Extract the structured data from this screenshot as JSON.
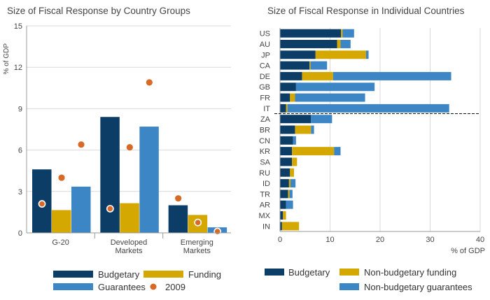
{
  "colors": {
    "budgetary": "#0b3d67",
    "funding": "#d4a800",
    "guarantees": "#3d86c6",
    "y2009": "#d86a28",
    "grid": "#d9d9d9",
    "axis": "#999999"
  },
  "chart_data": [
    {
      "type": "bar",
      "title": "Size of Fiscal Response by Country Groups",
      "ylabel": "% of GDP",
      "ylim": [
        0,
        15
      ],
      "yticks": [
        "0",
        "3",
        "6",
        "9",
        "12",
        "15"
      ],
      "categories": [
        {
          "lines": [
            "G-20"
          ]
        },
        {
          "lines": [
            "Developed",
            "Markets"
          ]
        },
        {
          "lines": [
            "Emerging",
            "Markets"
          ]
        }
      ],
      "series": [
        {
          "name": "Budgetary",
          "values": [
            4.6,
            8.4,
            2.0
          ]
        },
        {
          "name": "Funding",
          "values": [
            1.65,
            2.15,
            1.3
          ]
        },
        {
          "name": "Guarantees",
          "values": [
            3.35,
            7.7,
            0.4
          ]
        }
      ],
      "points_2009": [
        {
          "name": "2009",
          "values": [
            [
              2.1,
              4.0,
              6.4
            ],
            [
              1.75,
              6.2,
              10.9
            ],
            [
              2.5,
              0.75,
              0.1
            ]
          ]
        }
      ],
      "legend": [
        "Budgetary",
        "Funding",
        "Guarantees",
        "2009"
      ],
      "legend_position": "bottom",
      "grid": true
    },
    {
      "type": "stacked-bar-horizontal",
      "title": "Size of Fiscal Response in Individual Countries",
      "xlabel": "% of GDP",
      "xlim": [
        0,
        40
      ],
      "xticks": [
        "0",
        "10",
        "20",
        "30",
        "40"
      ],
      "categories": [
        "US",
        "AU",
        "JP",
        "CA",
        "DE",
        "GB",
        "FR",
        "IT",
        "ZA",
        "BR",
        "CN",
        "KR",
        "SA",
        "RU",
        "ID",
        "TR",
        "AR",
        "MX",
        "IN"
      ],
      "series": [
        {
          "name": "Budgetary",
          "values": [
            12.2,
            11.4,
            7.1,
            5.9,
            4.4,
            3.2,
            2.0,
            1.2,
            6.2,
            3.0,
            2.6,
            2.4,
            2.4,
            2.0,
            1.8,
            1.6,
            1.2,
            0.6,
            0.4
          ]
        },
        {
          "name": "Non-budgetary funding",
          "values": [
            0.3,
            0.7,
            10.1,
            0.2,
            6.2,
            0.0,
            1.0,
            0.3,
            0.0,
            3.2,
            0.0,
            8.4,
            1.0,
            0.8,
            0.3,
            0.3,
            0.0,
            0.6,
            3.4
          ]
        },
        {
          "name": "Non-budgetary guarantees",
          "values": [
            2.3,
            2.0,
            0.5,
            3.3,
            23.6,
            15.7,
            14.0,
            32.3,
            4.2,
            0.6,
            0.6,
            1.3,
            0.0,
            0.0,
            1.0,
            0.6,
            1.4,
            0.0,
            0.0
          ]
        }
      ],
      "separator_after": "IT",
      "legend": [
        "Budgetary",
        "Non-budgetary funding",
        "Non-budgetary guarantees"
      ],
      "legend_position": "bottom",
      "grid": true
    }
  ]
}
